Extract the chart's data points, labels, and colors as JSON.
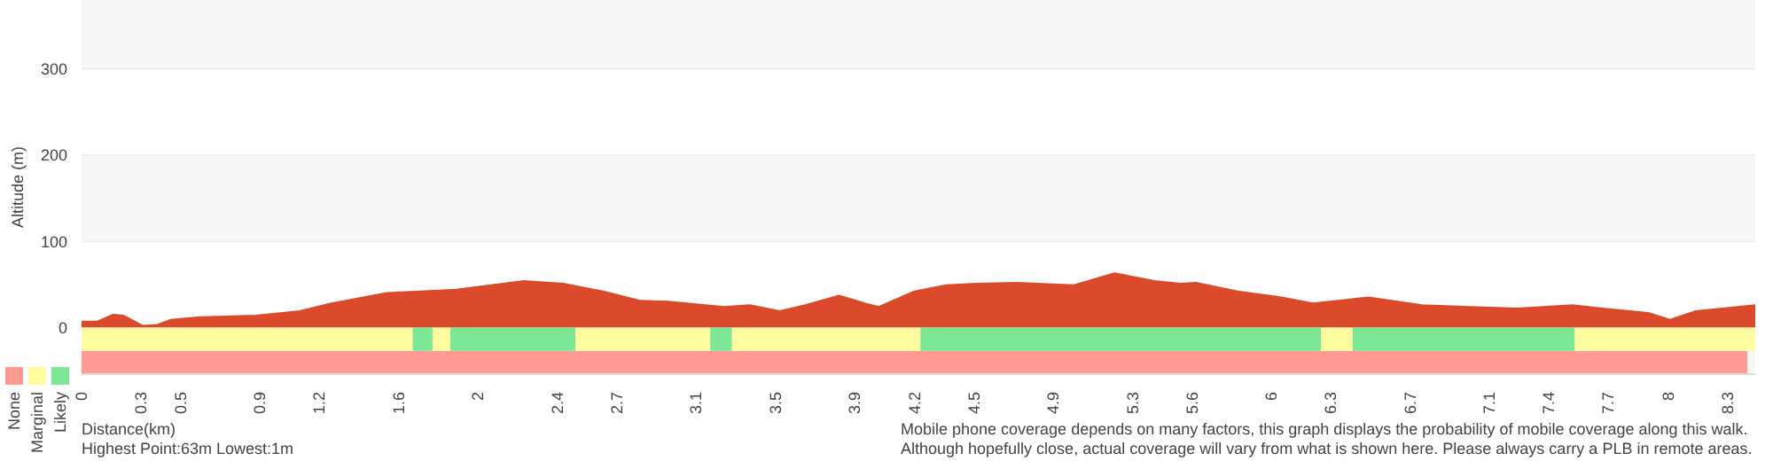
{
  "chart_data": {
    "type": "area",
    "xlabel": "Distance(km)",
    "ylabel": "Altitude (m)",
    "x": [
      0,
      0.08,
      0.16,
      0.21,
      0.31,
      0.38,
      0.45,
      0.6,
      0.88,
      1.1,
      1.26,
      1.54,
      1.89,
      2.23,
      2.43,
      2.56,
      2.63,
      2.82,
      2.96,
      3.24,
      3.37,
      3.52,
      3.65,
      3.82,
      3.95,
      4.02,
      4.2,
      4.36,
      4.51,
      4.72,
      5.0,
      5.21,
      5.41,
      5.54,
      5.62,
      5.83,
      6.05,
      6.21,
      6.49,
      6.76,
      7.0,
      7.24,
      7.52,
      7.67,
      7.9,
      8.01,
      8.14,
      8.44
    ],
    "series": [
      {
        "color": "#db4a2b",
        "values": [
          7,
          7,
          15,
          14,
          2,
          3,
          9,
          12,
          14,
          19,
          28,
          40,
          44,
          54,
          51,
          45,
          42,
          31,
          30,
          24,
          26,
          19,
          26,
          37,
          28,
          24,
          42,
          49,
          51,
          52,
          49,
          63,
          54,
          51,
          52,
          42,
          35,
          28,
          35,
          26,
          24,
          22,
          26,
          22,
          17,
          9,
          19,
          26
        ]
      }
    ],
    "xlim": [
      0,
      8.44
    ],
    "ylim": [
      -54,
      380
    ],
    "xticks": [
      0,
      0.3,
      0.5,
      0.9,
      1.2,
      1.6,
      2,
      2.4,
      2.7,
      3.1,
      3.5,
      3.9,
      4.2,
      4.5,
      4.9,
      5.3,
      5.6,
      6,
      6.3,
      6.7,
      7.1,
      7.4,
      7.7,
      8,
      8.3
    ],
    "yticks": [
      0,
      100,
      200,
      300
    ],
    "grid": "y",
    "legend": "bottom left",
    "marker": "none",
    "bands": [
      {
        "axis": "x",
        "from": 0,
        "to": 8.4,
        "label": "None",
        "color": "#ff9a95"
      },
      {
        "axis": "x",
        "from": 0,
        "to": 1.67,
        "label": "Marginal",
        "color": "#fffca0"
      },
      {
        "axis": "x",
        "from": 1.67,
        "to": 1.77,
        "label": "Likely",
        "color": "#7ce895"
      },
      {
        "axis": "x",
        "from": 1.77,
        "to": 1.86,
        "color": "#fffca0"
      },
      {
        "axis": "x",
        "from": 1.86,
        "to": 2.49,
        "color": "#7ce895"
      },
      {
        "axis": "x",
        "from": 2.49,
        "to": 3.17,
        "color": "#fffca0"
      },
      {
        "axis": "x",
        "from": 3.17,
        "to": 3.28,
        "color": "#7ce895"
      },
      {
        "axis": "x",
        "from": 3.28,
        "to": 4.23,
        "color": "#fffca0"
      },
      {
        "axis": "x",
        "from": 4.23,
        "to": 6.25,
        "color": "#7ce895"
      },
      {
        "axis": "x",
        "from": 6.25,
        "to": 6.41,
        "color": "#fffca0"
      },
      {
        "axis": "x",
        "from": 6.41,
        "to": 7.53,
        "color": "#7ce895"
      },
      {
        "axis": "x",
        "from": 7.53,
        "to": 8.44,
        "color": "#fffca0"
      }
    ],
    "annotations": [
      "Highest Point:63m Lowest:1m",
      "Mobile phone coverage depends on many factors, this graph displays the probability of mobile coverage along this walk. Although hopefully close, actual coverage will vary from what is shown here. Please always carry a PLB in remote areas."
    ]
  }
}
